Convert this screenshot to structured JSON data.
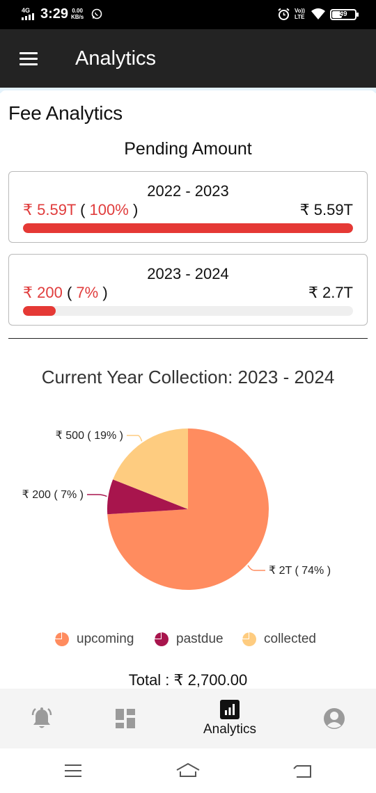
{
  "status_bar": {
    "network": "4G",
    "time": "3:29",
    "speed_value": "0.00",
    "speed_unit": "KB/s",
    "volte_top": "Vo))",
    "volte_bottom": "LTE",
    "battery": "39"
  },
  "app_bar": {
    "title": "Analytics",
    "menu_icon": "hamburger-menu-icon"
  },
  "page": {
    "section_title": "Fee Analytics",
    "pending_title": "Pending Amount"
  },
  "pending_cards": [
    {
      "year": "2022 - 2023",
      "pending_amount": "₹ 5.59T",
      "pending_percent": "100%",
      "pending_percent_value": 1.0,
      "total_amount": "₹ 5.59T"
    },
    {
      "year": "2023 - 2024",
      "pending_amount": "₹ 200",
      "pending_percent": "7%",
      "pending_percent_value": 0.07,
      "total_amount": "₹ 2.7T"
    }
  ],
  "chart_data": {
    "type": "pie",
    "title": "Current Year Collection: 2023 - 2024",
    "slices": [
      {
        "name": "upcoming",
        "label": "₹ 2T ( 74% )",
        "value": 74,
        "color": "#FF8C5F"
      },
      {
        "name": "pastdue",
        "label": "₹ 200 ( 7% )",
        "value": 7,
        "color": "#A8154D"
      },
      {
        "name": "collected",
        "label": "₹ 500 ( 19% )",
        "value": 19,
        "color": "#FECC80"
      }
    ],
    "legend": [
      "upcoming",
      "pastdue",
      "collected"
    ],
    "legend_placement": "bottom"
  },
  "total_text": "Total : ₹ 2,700.00",
  "bottom_nav": {
    "items": [
      {
        "icon": "bell-alert-icon",
        "label": "",
        "active": false
      },
      {
        "icon": "dashboard-icon",
        "label": "",
        "active": false
      },
      {
        "icon": "analytics-chart-icon",
        "label": "Analytics",
        "active": true
      },
      {
        "icon": "account-circle-icon",
        "label": "",
        "active": false
      }
    ]
  },
  "system_nav": {
    "items": [
      "recent-apps-icon",
      "home-icon",
      "back-icon"
    ]
  },
  "colors": {
    "accent_red": "#E53935",
    "appbar": "#232323",
    "upcoming": "#FF8C5F",
    "pastdue": "#A8154D",
    "collected": "#FECC80"
  }
}
